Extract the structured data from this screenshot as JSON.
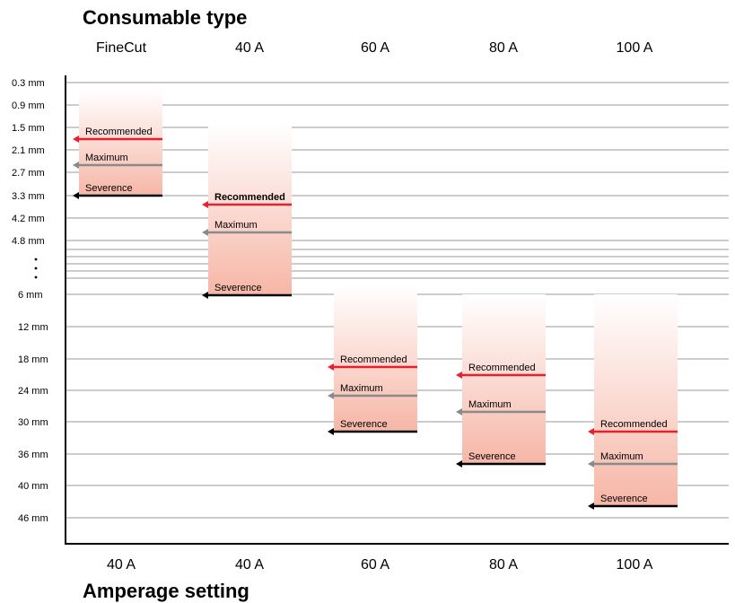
{
  "header": {
    "title": "Consumable type"
  },
  "footer": {
    "title": "Amperage setting"
  },
  "chart_data": {
    "type": "bar",
    "title": "Consumable type",
    "xlabel": "Amperage setting",
    "ylabel": "",
    "y_ticks_top": [
      "0.3 mm",
      "0.9 mm",
      "1.5 mm",
      "2.1 mm",
      "2.7 mm",
      "3.3 mm",
      "4.2 mm",
      "4.8 mm"
    ],
    "y_ticks_bottom": [
      "6 mm",
      "12 mm",
      "18 mm",
      "24 mm",
      "30 mm",
      "36 mm",
      "40 mm",
      "46 mm"
    ],
    "axis_break": "⋮",
    "consumable_types": [
      "FineCut",
      "40 A",
      "60 A",
      "80 A",
      "100 A"
    ],
    "amperage_settings": [
      "40 A",
      "40 A",
      "60 A",
      "80 A",
      "100 A"
    ],
    "marker_labels": {
      "recommended": "Recommended",
      "maximum": "Maximum",
      "severence": "Severence"
    },
    "colors": {
      "recommended": "#e8202e",
      "maximum": "#8a8a8a",
      "severence": "#000000",
      "bar_gradient_top": "#ffffff",
      "bar_gradient_bottom": "#f6b6a6"
    },
    "series": [
      {
        "consumable": "FineCut",
        "amperage": "40 A",
        "recommended": "1.5 mm",
        "maximum": "2.7 mm",
        "severence": "3.3 mm"
      },
      {
        "consumable": "40 A",
        "amperage": "40 A",
        "recommended": "4.2 mm",
        "maximum": "4.8 mm",
        "severence": "6 mm",
        "recommended_bold": true
      },
      {
        "consumable": "60 A",
        "amperage": "60 A",
        "recommended": "18 mm",
        "maximum": "24 mm",
        "severence": "30 mm"
      },
      {
        "consumable": "80 A",
        "amperage": "80 A",
        "recommended": "20 mm",
        "maximum": "28 mm",
        "severence": "36 mm"
      },
      {
        "consumable": "100 A",
        "amperage": "100 A",
        "recommended": "30 mm",
        "maximum": "36 mm",
        "severence": "46 mm"
      }
    ],
    "grid": true
  }
}
